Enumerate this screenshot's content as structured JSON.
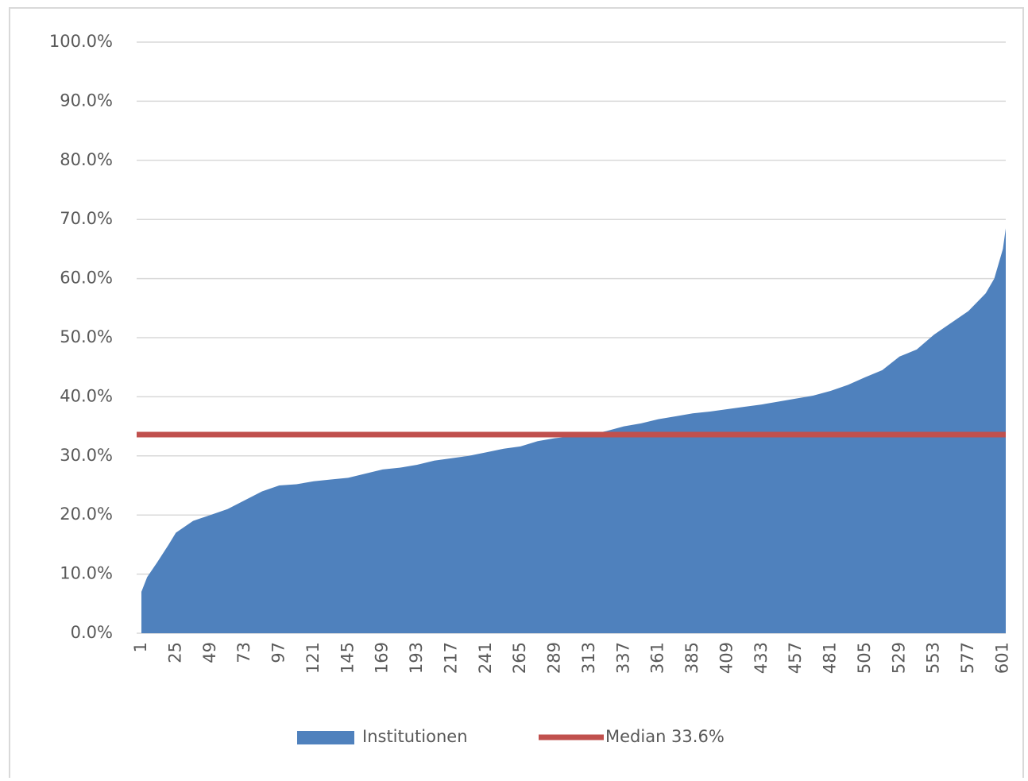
{
  "chart_data": {
    "type": "area",
    "x": [
      1,
      5,
      12,
      20,
      25,
      37,
      49,
      61,
      73,
      85,
      97,
      109,
      121,
      133,
      145,
      157,
      169,
      181,
      193,
      205,
      217,
      229,
      241,
      253,
      265,
      277,
      289,
      301,
      313,
      325,
      337,
      349,
      361,
      373,
      385,
      397,
      409,
      421,
      433,
      445,
      457,
      469,
      481,
      493,
      505,
      517,
      529,
      541,
      553,
      565,
      577,
      589,
      595,
      601,
      603
    ],
    "series": [
      {
        "name": "Institutionen",
        "color": "#4f81bd",
        "values": [
          7,
          9.5,
          12,
          15,
          17,
          19,
          20,
          21,
          22.5,
          24,
          25,
          25.2,
          25.7,
          26,
          26.3,
          27,
          27.7,
          28,
          28.5,
          29.2,
          29.6,
          30,
          30.6,
          31.2,
          31.6,
          32.5,
          33,
          33.3,
          33.6,
          34.2,
          35,
          35.5,
          36.2,
          36.7,
          37.2,
          37.5,
          37.9,
          38.3,
          38.7,
          39.2,
          39.7,
          40.2,
          41,
          42,
          43.3,
          44.5,
          46.8,
          48,
          50.5,
          52.5,
          54.5,
          57.5,
          60,
          65,
          68.5
        ]
      }
    ],
    "median": {
      "name": "Median 33.6%",
      "value": 33.6,
      "color": "#c0504d"
    },
    "xlim": [
      1,
      603
    ],
    "xticks": [
      1,
      25,
      49,
      73,
      97,
      121,
      145,
      169,
      193,
      217,
      241,
      265,
      289,
      313,
      337,
      361,
      385,
      409,
      433,
      457,
      481,
      505,
      529,
      553,
      577,
      601
    ],
    "ylim": [
      0,
      100
    ],
    "yticks": [
      {
        "value": 0,
        "label": "0.0%"
      },
      {
        "value": 10,
        "label": "10.0%"
      },
      {
        "value": 20,
        "label": "20.0%"
      },
      {
        "value": 30,
        "label": "30.0%"
      },
      {
        "value": 40,
        "label": "40.0%"
      },
      {
        "value": 50,
        "label": "50.0%"
      },
      {
        "value": 60,
        "label": "60.0%"
      },
      {
        "value": 70,
        "label": "70.0%"
      },
      {
        "value": 80,
        "label": "80.0%"
      },
      {
        "value": 90,
        "label": "90.0%"
      },
      {
        "value": 100,
        "label": "100.0%"
      }
    ],
    "grid": true,
    "legend": "bottom"
  }
}
